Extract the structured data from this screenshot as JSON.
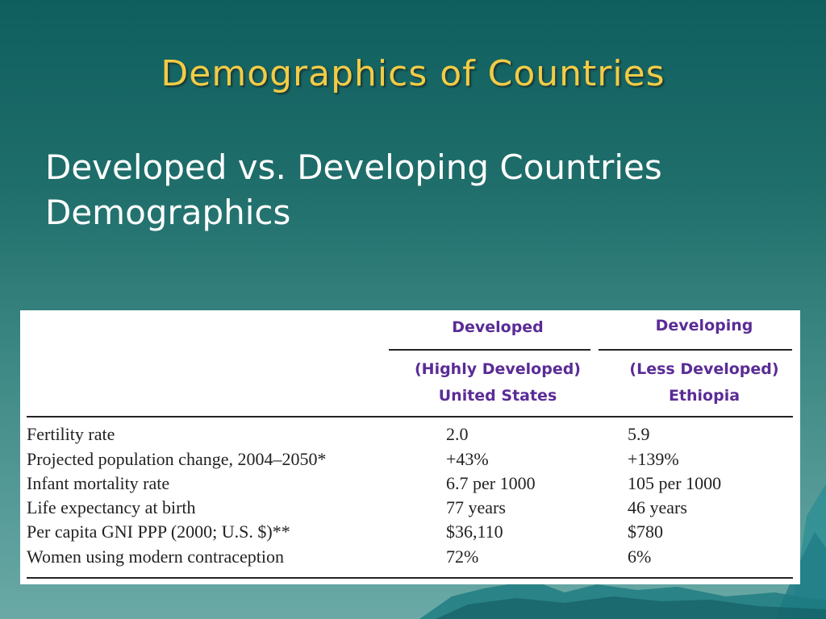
{
  "slide": {
    "title": "Demographics of Countries",
    "subtitle_line1": "Developed vs. Developing Countries",
    "subtitle_line2": "Demographics"
  },
  "table": {
    "columns": [
      {
        "group": "Developed",
        "sub1": "(Highly Developed)",
        "sub2": "United States"
      },
      {
        "group": "Developing",
        "sub1": "(Less Developed)",
        "sub2": "Ethiopia"
      }
    ],
    "rows": [
      {
        "label": "Fertility rate",
        "developed": "2.0",
        "developing": "5.9"
      },
      {
        "label": "Projected population change, 2004–2050*",
        "developed": "+43%",
        "developing": "+139%"
      },
      {
        "label": "Infant mortality rate",
        "developed": "6.7 per 1000",
        "developing": "105 per 1000"
      },
      {
        "label": "Life expectancy at birth",
        "developed": "77 years",
        "developing": "46 years"
      },
      {
        "label": "Per capita GNI PPP (2000; U.S. $)**",
        "developed": "$36,110",
        "developing": "$780"
      },
      {
        "label": "Women using modern contraception",
        "developed": "72%",
        "developing": "6%"
      }
    ]
  },
  "colors": {
    "title": "#f2cc45",
    "header_text": "#5a2c96",
    "background_top": "#0f5f5f",
    "background_bottom": "#6aa9a6"
  }
}
